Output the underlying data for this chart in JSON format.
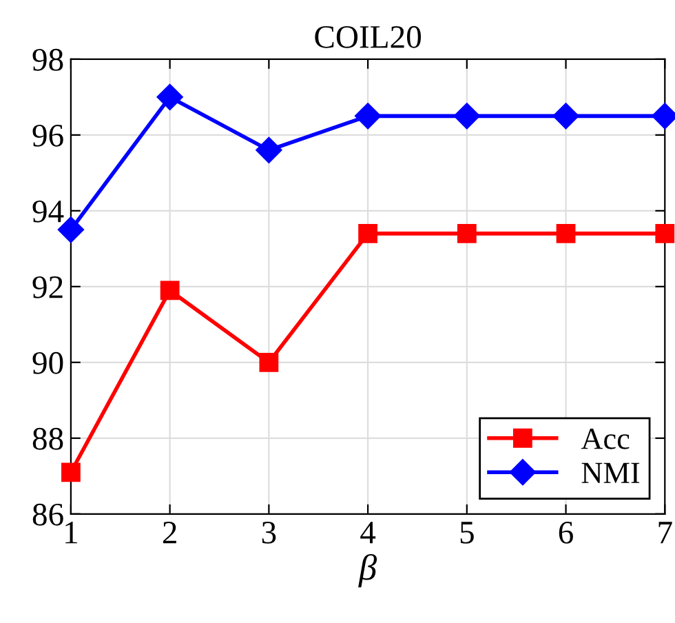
{
  "chart_data": {
    "type": "line",
    "title": "COIL20",
    "xlabel": "β",
    "x": [
      1,
      2,
      3,
      4,
      5,
      6,
      7
    ],
    "series": [
      {
        "name": "Acc",
        "color": "#ff0000",
        "marker": "square",
        "values": [
          87.1,
          91.9,
          90.0,
          93.4,
          93.4,
          93.4,
          93.4
        ]
      },
      {
        "name": "NMI",
        "color": "#0000ff",
        "marker": "diamond",
        "values": [
          93.5,
          97.0,
          95.6,
          96.5,
          96.5,
          96.5,
          96.5
        ]
      }
    ],
    "xlim": [
      1,
      7
    ],
    "xticks": [
      1,
      2,
      3,
      4,
      5,
      6,
      7
    ],
    "ylim": [
      86,
      98
    ],
    "yticks": [
      86,
      88,
      90,
      92,
      94,
      96,
      98
    ],
    "grid": true,
    "legend": "bottom right",
    "line_style": "solid"
  }
}
